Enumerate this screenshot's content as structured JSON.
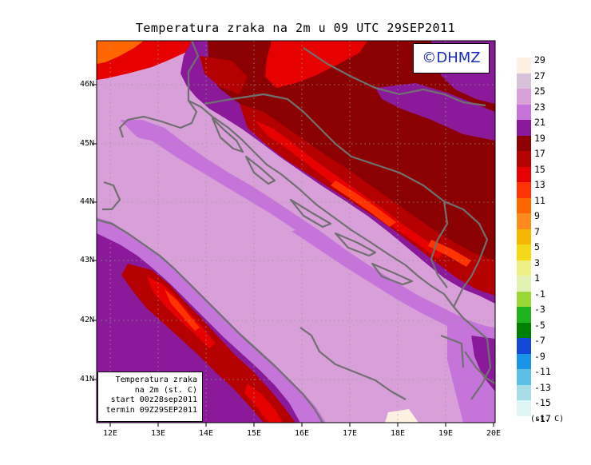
{
  "title": "Temperatura zraka na 2m u 09 UTC 29SEP2011",
  "logo": "©DHMZ",
  "info_box": {
    "lines": [
      "Temperatura zraka",
      "na 2m (st. C)",
      "start 00z28sep2011",
      "termin 09Z29SEP2011"
    ]
  },
  "axes": {
    "lat_ticks": [
      "46N",
      "45N",
      "44N",
      "43N",
      "42N",
      "41N"
    ],
    "lon_ticks": [
      "12E",
      "13E",
      "14E",
      "15E",
      "16E",
      "17E",
      "18E",
      "19E",
      "20E"
    ],
    "lon_range": [
      11.95,
      20.0
    ],
    "lat_range": [
      40.3,
      46.8
    ],
    "grid": "dotted"
  },
  "legend": {
    "unit": "(st. C)",
    "labels": [
      "29",
      "27",
      "25",
      "23",
      "21",
      "19",
      "17",
      "15",
      "13",
      "11",
      "9",
      "7",
      "5",
      "3",
      "1",
      "-1",
      "-3",
      "-5",
      "-7",
      "-9",
      "-11",
      "-13",
      "-15",
      "-17"
    ],
    "colors": [
      "#fdf0e0",
      "#d9c2d9",
      "#d99fd9",
      "#c575d9",
      "#8b1a9b",
      "#8b0000",
      "#b50000",
      "#e60000",
      "#ff3300",
      "#ff6600",
      "#ff8c1a",
      "#f5b800",
      "#f2d91a",
      "#f0ef85",
      "#e2f2b5",
      "#9ad83a",
      "#1fb31f",
      "#008000",
      "#1446d9",
      "#1a94e6",
      "#5cc0e6",
      "#a8dde8",
      "#dff6f6"
    ]
  },
  "map_colors": {
    "sea": "#d99fd9",
    "sea_near_coast": "#c575d9",
    "land_low": "#c575d9",
    "land_mid": "#8b1a9b",
    "land_warm": "#8b0000",
    "land_hot": "#b50000",
    "mountain": "#e60000",
    "peak": "#ff3300",
    "coastline": "#707070"
  }
}
